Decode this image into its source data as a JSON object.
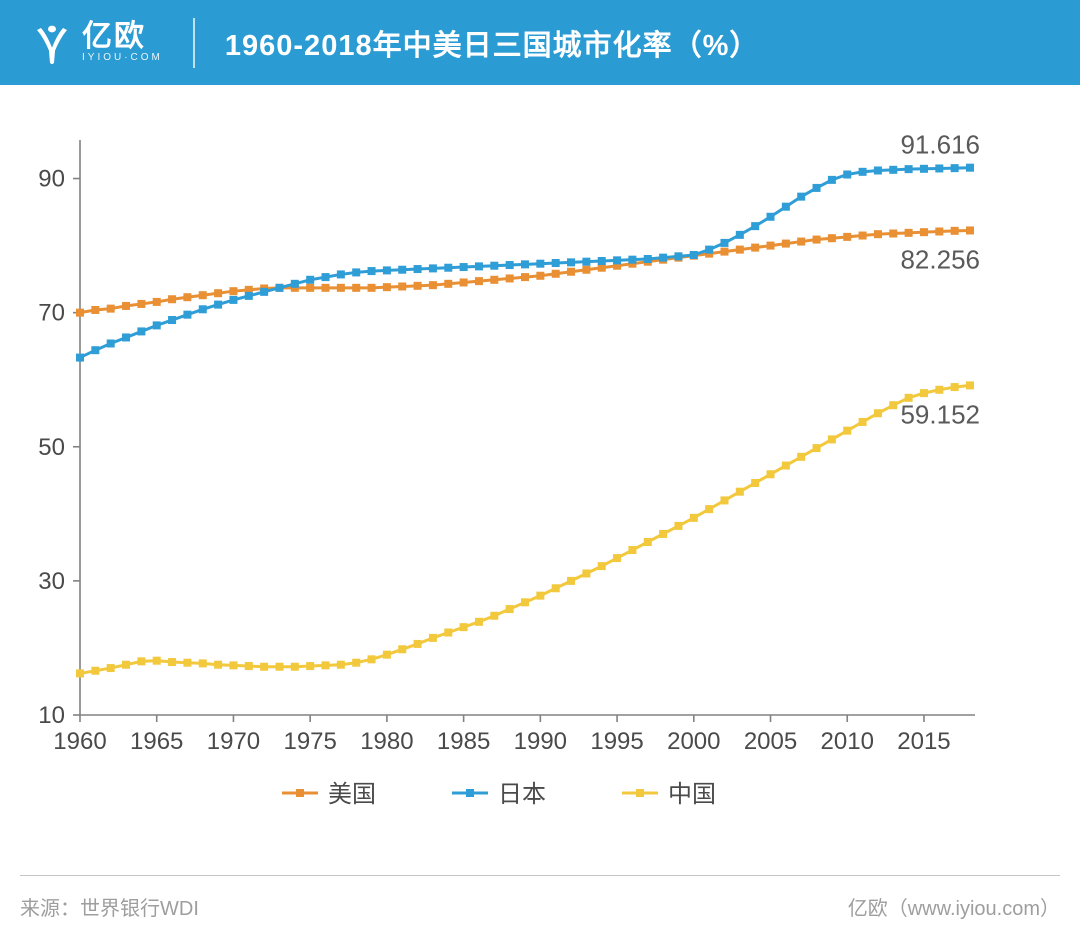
{
  "header": {
    "bg_color": "#2b9bd4",
    "logo_main": "亿欧",
    "logo_sub": "IYIOU·COM",
    "title": "1960-2018年中美日三国城市化率（%）"
  },
  "footer": {
    "text_color": "#9e9e9e",
    "source_label": "来源：世界银行WDI",
    "brand_label": "亿欧（www.iyiou.com）"
  },
  "chart": {
    "type": "line",
    "background_color": "#ffffff",
    "axis_color": "#828282",
    "axis_fontsize": 24,
    "label_color": "#4a4a4a",
    "tick_fontsize": 24,
    "x": {
      "min": 1960,
      "max": 2018,
      "ticks": [
        1960,
        1965,
        1970,
        1975,
        1980,
        1985,
        1990,
        1995,
        2000,
        2005,
        2010,
        2015
      ]
    },
    "y": {
      "min": 10,
      "max": 95,
      "ticks": [
        10,
        30,
        50,
        70,
        90
      ]
    },
    "marker_size": 4,
    "line_width": 3,
    "legend": {
      "items": [
        {
          "key": "us",
          "label": "美国"
        },
        {
          "key": "jp",
          "label": "日本"
        },
        {
          "key": "cn",
          "label": "中国"
        }
      ],
      "fontsize": 24
    },
    "end_labels": {
      "jp": "91.616",
      "us": "82.256",
      "cn": "59.152"
    },
    "end_label_fontsize": 26,
    "end_label_color": "#5a5a5a",
    "series": {
      "us": {
        "color": "#e98f34",
        "values": [
          70.0,
          70.4,
          70.6,
          71.0,
          71.3,
          71.6,
          72.0,
          72.3,
          72.6,
          72.9,
          73.2,
          73.4,
          73.6,
          73.7,
          73.7,
          73.7,
          73.7,
          73.7,
          73.7,
          73.7,
          73.8,
          73.9,
          74.0,
          74.1,
          74.3,
          74.5,
          74.7,
          74.9,
          75.1,
          75.3,
          75.5,
          75.8,
          76.1,
          76.4,
          76.7,
          77.0,
          77.3,
          77.6,
          77.9,
          78.2,
          78.5,
          78.8,
          79.1,
          79.4,
          79.7,
          80.0,
          80.3,
          80.6,
          80.9,
          81.1,
          81.3,
          81.5,
          81.7,
          81.8,
          81.9,
          82.0,
          82.1,
          82.2,
          82.256
        ]
      },
      "jp": {
        "color": "#2f9dd6",
        "values": [
          63.3,
          64.4,
          65.4,
          66.3,
          67.2,
          68.1,
          68.9,
          69.7,
          70.5,
          71.2,
          71.9,
          72.5,
          73.1,
          73.7,
          74.3,
          74.9,
          75.3,
          75.7,
          76.0,
          76.2,
          76.3,
          76.4,
          76.5,
          76.6,
          76.7,
          76.8,
          76.9,
          77.0,
          77.1,
          77.2,
          77.3,
          77.4,
          77.5,
          77.6,
          77.7,
          77.8,
          77.9,
          78.0,
          78.2,
          78.4,
          78.6,
          79.4,
          80.4,
          81.6,
          82.9,
          84.3,
          85.8,
          87.3,
          88.6,
          89.8,
          90.6,
          91.0,
          91.2,
          91.3,
          91.4,
          91.45,
          91.5,
          91.55,
          91.616
        ]
      },
      "cn": {
        "color": "#f2c83c",
        "values": [
          16.2,
          16.6,
          17.0,
          17.5,
          18.0,
          18.1,
          17.9,
          17.8,
          17.7,
          17.5,
          17.4,
          17.3,
          17.2,
          17.2,
          17.2,
          17.3,
          17.4,
          17.5,
          17.8,
          18.3,
          19.0,
          19.8,
          20.6,
          21.5,
          22.3,
          23.1,
          23.9,
          24.8,
          25.8,
          26.8,
          27.8,
          28.9,
          30.0,
          31.1,
          32.2,
          33.4,
          34.6,
          35.8,
          37.0,
          38.2,
          39.4,
          40.7,
          42.0,
          43.3,
          44.6,
          45.9,
          47.2,
          48.5,
          49.8,
          51.1,
          52.4,
          53.7,
          55.0,
          56.2,
          57.3,
          58.0,
          58.5,
          58.9,
          59.152
        ]
      }
    }
  }
}
